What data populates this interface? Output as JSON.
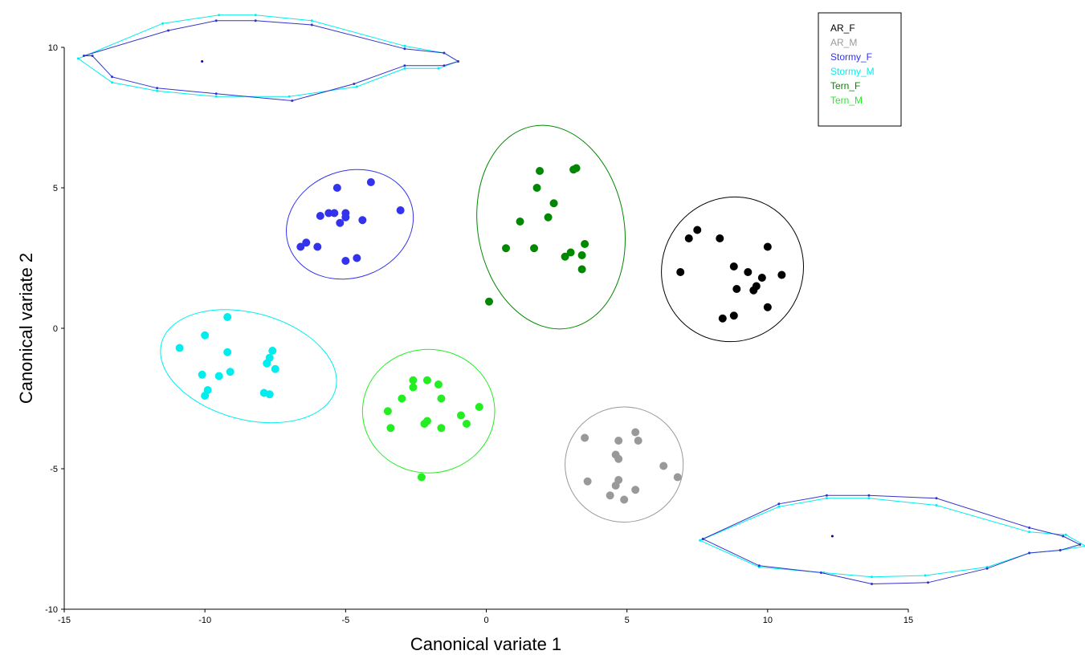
{
  "chart_data": {
    "type": "scatter",
    "xlabel": "Canonical variate 1",
    "ylabel": "Canonical variate 2",
    "xlim": [
      -15,
      15
    ],
    "ylim": [
      -10,
      10
    ],
    "xticks": [
      -15,
      -10,
      -5,
      0,
      5,
      10,
      15
    ],
    "yticks": [
      -10,
      -5,
      0,
      5,
      10
    ],
    "legend_position": "top-right",
    "groups": [
      {
        "name": "AR_F",
        "color": "#000000",
        "points": [
          [
            7.2,
            3.2
          ],
          [
            7.5,
            3.5
          ],
          [
            6.9,
            2.0
          ],
          [
            8.3,
            3.2
          ],
          [
            10.0,
            2.9
          ],
          [
            8.8,
            2.2
          ],
          [
            9.3,
            2.0
          ],
          [
            9.8,
            1.8
          ],
          [
            10.5,
            1.9
          ],
          [
            8.9,
            1.4
          ],
          [
            9.6,
            1.5
          ],
          [
            9.5,
            1.35
          ],
          [
            10.0,
            0.75
          ],
          [
            8.8,
            0.45
          ],
          [
            8.4,
            0.35
          ]
        ],
        "ellipse": {
          "cx": 8.75,
          "cy": 2.1,
          "rx": 2.5,
          "ry": 2.6,
          "angle": 30
        }
      },
      {
        "name": "AR_M",
        "color": "#999999",
        "points": [
          [
            3.5,
            -3.9
          ],
          [
            4.7,
            -4.0
          ],
          [
            5.3,
            -3.7
          ],
          [
            5.4,
            -4.0
          ],
          [
            4.6,
            -4.5
          ],
          [
            4.7,
            -4.65
          ],
          [
            6.3,
            -4.9
          ],
          [
            6.8,
            -5.3
          ],
          [
            3.6,
            -5.45
          ],
          [
            4.7,
            -5.4
          ],
          [
            4.6,
            -5.6
          ],
          [
            5.3,
            -5.75
          ],
          [
            4.4,
            -5.95
          ],
          [
            4.9,
            -6.1
          ]
        ],
        "ellipse": {
          "cx": 4.9,
          "cy": -4.85,
          "rx": 2.1,
          "ry": 2.05,
          "angle": 0
        }
      },
      {
        "name": "Stormy_F",
        "color": "#3333ee",
        "points": [
          [
            -4.1,
            5.2
          ],
          [
            -5.3,
            5.0
          ],
          [
            -3.05,
            4.2
          ],
          [
            -5.6,
            4.1
          ],
          [
            -5.4,
            4.1
          ],
          [
            -5.0,
            4.1
          ],
          [
            -5.9,
            4.0
          ],
          [
            -5.0,
            3.95
          ],
          [
            -4.4,
            3.85
          ],
          [
            -5.2,
            3.75
          ],
          [
            -6.4,
            3.05
          ],
          [
            -6.6,
            2.9
          ],
          [
            -6.0,
            2.9
          ],
          [
            -4.6,
            2.5
          ],
          [
            -5.0,
            2.4
          ]
        ],
        "ellipse": {
          "cx": -4.85,
          "cy": 3.7,
          "rx": 2.3,
          "ry": 1.9,
          "angle": -20
        }
      },
      {
        "name": "Stormy_M",
        "color": "#00eeee",
        "points": [
          [
            -9.2,
            0.4
          ],
          [
            -10.0,
            -0.25
          ],
          [
            -10.9,
            -0.7
          ],
          [
            -9.2,
            -0.85
          ],
          [
            -7.6,
            -0.8
          ],
          [
            -7.7,
            -1.05
          ],
          [
            -7.8,
            -1.25
          ],
          [
            -7.5,
            -1.45
          ],
          [
            -9.1,
            -1.55
          ],
          [
            -10.1,
            -1.65
          ],
          [
            -9.5,
            -1.7
          ],
          [
            -9.9,
            -2.2
          ],
          [
            -7.9,
            -2.3
          ],
          [
            -7.7,
            -2.35
          ],
          [
            -10.0,
            -2.4
          ]
        ],
        "ellipse": {
          "cx": -8.45,
          "cy": -1.35,
          "rx": 3.2,
          "ry": 1.9,
          "angle": 15
        }
      },
      {
        "name": "Tern_F",
        "color": "#008800",
        "points": [
          [
            3.2,
            5.7
          ],
          [
            3.1,
            5.65
          ],
          [
            1.9,
            5.6
          ],
          [
            1.8,
            5.0
          ],
          [
            2.4,
            4.45
          ],
          [
            2.2,
            3.95
          ],
          [
            1.2,
            3.8
          ],
          [
            3.5,
            3.0
          ],
          [
            0.7,
            2.85
          ],
          [
            1.7,
            2.85
          ],
          [
            3.0,
            2.7
          ],
          [
            3.4,
            2.6
          ],
          [
            2.8,
            2.55
          ],
          [
            3.4,
            2.1
          ],
          [
            0.1,
            0.95
          ]
        ],
        "ellipse": {
          "cx": 2.3,
          "cy": 3.6,
          "rx": 2.6,
          "ry": 3.65,
          "angle": -10
        }
      },
      {
        "name": "Tern_M",
        "color": "#22ee22",
        "points": [
          [
            -2.1,
            -1.85
          ],
          [
            -2.6,
            -1.85
          ],
          [
            -1.7,
            -2.0
          ],
          [
            -2.6,
            -2.1
          ],
          [
            -3.0,
            -2.5
          ],
          [
            -1.6,
            -2.5
          ],
          [
            -0.25,
            -2.8
          ],
          [
            -3.5,
            -2.95
          ],
          [
            -0.9,
            -3.1
          ],
          [
            -2.1,
            -3.3
          ],
          [
            -2.2,
            -3.4
          ],
          [
            -0.7,
            -3.4
          ],
          [
            -3.4,
            -3.55
          ],
          [
            -1.6,
            -3.55
          ],
          [
            -2.3,
            -5.3
          ]
        ],
        "ellipse": {
          "cx": -2.05,
          "cy": -2.95,
          "rx": 2.35,
          "ry": 2.2,
          "angle": 0
        }
      }
    ],
    "polygons": [
      {
        "name": "upper-left-overlay",
        "colors": [
          "#3333cc",
          "#00eeee"
        ],
        "outline_1": [
          [
            -14.3,
            9.7
          ],
          [
            -11.3,
            10.6
          ],
          [
            -9.6,
            10.95
          ],
          [
            -8.2,
            10.95
          ],
          [
            -6.2,
            10.8
          ],
          [
            -2.9,
            9.95
          ],
          [
            -1.5,
            9.8
          ],
          [
            -1.0,
            9.5
          ],
          [
            -1.5,
            9.35
          ],
          [
            -2.9,
            9.35
          ],
          [
            -4.7,
            8.7
          ],
          [
            -6.9,
            8.1
          ],
          [
            -9.6,
            8.35
          ],
          [
            -11.7,
            8.55
          ],
          [
            -13.3,
            8.95
          ],
          [
            -14.0,
            9.7
          ]
        ],
        "outline_2": [
          [
            -14.5,
            9.6
          ],
          [
            -11.5,
            10.85
          ],
          [
            -9.5,
            11.15
          ],
          [
            -8.2,
            11.15
          ],
          [
            -6.2,
            10.95
          ],
          [
            -2.9,
            10.05
          ],
          [
            -1.5,
            9.8
          ],
          [
            -1.0,
            9.5
          ],
          [
            -1.7,
            9.25
          ],
          [
            -2.9,
            9.25
          ],
          [
            -4.6,
            8.6
          ],
          [
            -7.0,
            8.25
          ],
          [
            -9.6,
            8.25
          ],
          [
            -11.7,
            8.45
          ],
          [
            -13.3,
            8.75
          ],
          [
            -14.5,
            9.6
          ]
        ],
        "center": [
          -10.1,
          9.5
        ]
      },
      {
        "name": "lower-right-overlay",
        "colors": [
          "#3333cc",
          "#00eeee"
        ],
        "outline_1": [
          [
            7.7,
            -7.5
          ],
          [
            10.4,
            -6.25
          ],
          [
            12.1,
            -5.95
          ],
          [
            13.6,
            -5.95
          ],
          [
            16.0,
            -6.05
          ],
          [
            19.3,
            -7.1
          ],
          [
            20.5,
            -7.4
          ],
          [
            21.1,
            -7.7
          ],
          [
            20.4,
            -7.9
          ],
          [
            19.3,
            -8.0
          ],
          [
            17.8,
            -8.55
          ],
          [
            15.7,
            -9.05
          ],
          [
            13.7,
            -9.1
          ],
          [
            11.9,
            -8.7
          ],
          [
            9.7,
            -8.45
          ],
          [
            7.7,
            -7.5
          ]
        ],
        "outline_2": [
          [
            7.6,
            -7.55
          ],
          [
            10.4,
            -6.35
          ],
          [
            12.1,
            -6.05
          ],
          [
            13.6,
            -6.05
          ],
          [
            16.0,
            -6.3
          ],
          [
            19.3,
            -7.25
          ],
          [
            20.6,
            -7.35
          ],
          [
            21.3,
            -7.75
          ],
          [
            20.4,
            -7.9
          ],
          [
            19.3,
            -8.0
          ],
          [
            17.8,
            -8.5
          ],
          [
            15.6,
            -8.8
          ],
          [
            13.7,
            -8.85
          ],
          [
            12.0,
            -8.7
          ],
          [
            9.7,
            -8.5
          ],
          [
            7.6,
            -7.55
          ]
        ],
        "center": [
          12.3,
          -7.4
        ]
      }
    ]
  }
}
